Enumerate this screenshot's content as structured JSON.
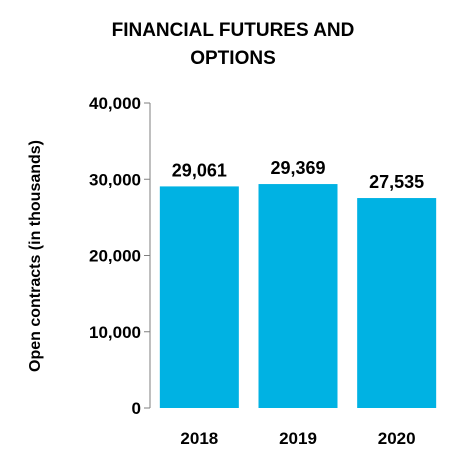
{
  "chart_data": {
    "type": "bar",
    "title_lines": [
      "FINANCIAL FUTURES AND",
      "OPTIONS"
    ],
    "xlabel": "",
    "ylabel": "Open contracts (in thousands)",
    "categories": [
      "2018",
      "2019",
      "2020"
    ],
    "values": [
      29061,
      29369,
      27535
    ],
    "data_labels": [
      "29,061",
      "29,369",
      "27,535"
    ],
    "yticks": [
      0,
      10000,
      20000,
      30000,
      40000
    ],
    "ytick_labels": [
      "0",
      "10,000",
      "20,000",
      "30,000",
      "40,000"
    ],
    "ylim": [
      0,
      40000
    ],
    "grid": false,
    "legend": "none",
    "bar_color": "#00B2E3",
    "axis_color": "#7F7F7F"
  }
}
